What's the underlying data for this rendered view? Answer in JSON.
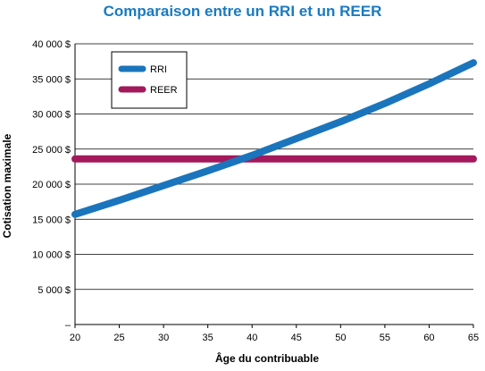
{
  "chart_data": {
    "type": "line",
    "title": "Comparaison entre un RRI et un REER",
    "xlabel": "Âge du contribuable",
    "ylabel": "Cotisation maximale",
    "x": [
      20,
      25,
      30,
      35,
      40,
      45,
      50,
      55,
      60,
      65
    ],
    "xlim": [
      20,
      65
    ],
    "ylim": [
      0,
      40000
    ],
    "y_ticks": [
      0,
      5000,
      10000,
      15000,
      20000,
      25000,
      30000,
      35000,
      40000
    ],
    "y_tick_labels": [
      "–",
      "5 000 $",
      "10 000 $",
      "15 000 $",
      "20 000 $",
      "25 000 $",
      "30 000 $",
      "35 000 $",
      "40 000 $"
    ],
    "x_tick_labels": [
      "20",
      "25",
      "30",
      "35",
      "40",
      "45",
      "50",
      "55",
      "60",
      "65"
    ],
    "grid": "horizontal",
    "legend_position": "top-left",
    "series": [
      {
        "name": "RRI",
        "color": "#1a75bc",
        "values": [
          15700,
          17700,
          19800,
          21900,
          24100,
          26500,
          28900,
          31500,
          34300,
          37300
        ]
      },
      {
        "name": "REER",
        "color": "#a3195b",
        "values": [
          23600,
          23600,
          23600,
          23600,
          23600,
          23600,
          23600,
          23600,
          23600,
          23600
        ]
      }
    ]
  }
}
